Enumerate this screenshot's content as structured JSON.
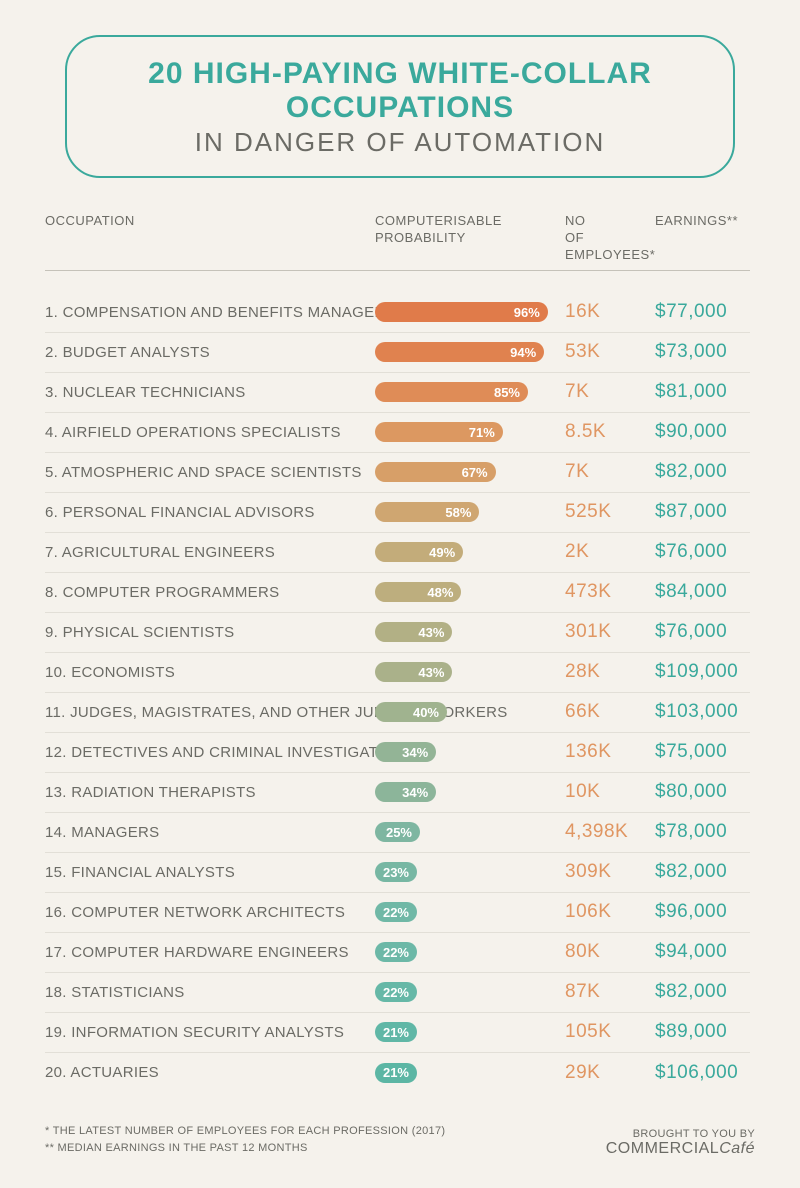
{
  "header": {
    "title_main": "20 HIGH-PAYING WHITE-COLLAR OCCUPATIONS",
    "title_sub": "IN DANGER OF AUTOMATION"
  },
  "columns": {
    "c1": "OCCUPATION",
    "c2": "COMPUTERISABLE\nPROBABILITY",
    "c3": "NO\nOF EMPLOYEES*",
    "c4": "EARNINGS**"
  },
  "chart": {
    "bar_max_width": 180,
    "bar_colors_gradient": [
      "#e07b4a",
      "#de905c",
      "#d9a26a",
      "#bfb37b",
      "#a3b58f",
      "#85b7a0",
      "#6cb8a7",
      "#5cb6a4"
    ]
  },
  "rows": [
    {
      "n": "1.",
      "occ": "COMPENSATION AND BENEFITS MANAGERS",
      "pct": 96,
      "emp": "16K",
      "earn": "$77,000",
      "color": "#e07b4a"
    },
    {
      "n": "2.",
      "occ": "BUDGET ANALYSTS",
      "pct": 94,
      "emp": "53K",
      "earn": "$73,000",
      "color": "#e0824f"
    },
    {
      "n": "3.",
      "occ": "NUCLEAR TECHNICIANS",
      "pct": 85,
      "emp": "7K",
      "earn": "$81,000",
      "color": "#df8c57"
    },
    {
      "n": "4.",
      "occ": "AIRFIELD OPERATIONS SPECIALISTS",
      "pct": 71,
      "emp": "8.5K",
      "earn": "$90,000",
      "color": "#dc9861"
    },
    {
      "n": "5.",
      "occ": "ATMOSPHERIC AND SPACE SCIENTISTS",
      "pct": 67,
      "emp": "7K",
      "earn": "$82,000",
      "color": "#d79f68"
    },
    {
      "n": "6.",
      "occ": "PERSONAL FINANCIAL ADVISORS",
      "pct": 58,
      "emp": "525K",
      "earn": "$87,000",
      "color": "#cfa671"
    },
    {
      "n": "7.",
      "occ": "AGRICULTURAL ENGINEERS",
      "pct": 49,
      "emp": "2K",
      "earn": "$76,000",
      "color": "#c3ac7a"
    },
    {
      "n": "8.",
      "occ": "COMPUTER PROGRAMMERS",
      "pct": 48,
      "emp": "473K",
      "earn": "$84,000",
      "color": "#bdae7e"
    },
    {
      "n": "9.",
      "occ": "PHYSICAL SCIENTISTS",
      "pct": 43,
      "emp": "301K",
      "earn": "$76,000",
      "color": "#b2b085"
    },
    {
      "n": "10.",
      "occ": "ECONOMISTS",
      "pct": 43,
      "emp": "28K",
      "earn": "$109,000",
      "color": "#aab18a"
    },
    {
      "n": "11.",
      "occ": "JUDGES, MAGISTRATES, AND OTHER JUDICIAL WORKERS",
      "pct": 40,
      "emp": "66K",
      "earn": "$103,000",
      "color": "#a0b38f"
    },
    {
      "n": "12.",
      "occ": "DETECTIVES AND CRIMINAL INVESTIGATORS",
      "pct": 34,
      "emp": "136K",
      "earn": "$75,000",
      "color": "#93b496"
    },
    {
      "n": "13.",
      "occ": "RADIATION THERAPISTS",
      "pct": 34,
      "emp": "10K",
      "earn": "$80,000",
      "color": "#8cb59a"
    },
    {
      "n": "14.",
      "occ": "MANAGERS",
      "pct": 25,
      "emp": "4,398K",
      "earn": "$78,000",
      "color": "#7eb6a1"
    },
    {
      "n": "15.",
      "occ": "FINANCIAL ANALYSTS",
      "pct": 23,
      "emp": "309K",
      "earn": "$82,000",
      "color": "#77b7a3"
    },
    {
      "n": "16.",
      "occ": "COMPUTER NETWORK ARCHITECTS",
      "pct": 22,
      "emp": "106K",
      "earn": "$96,000",
      "color": "#70b8a6"
    },
    {
      "n": "17.",
      "occ": "COMPUTER HARDWARE ENGINEERS",
      "pct": 22,
      "emp": "80K",
      "earn": "$94,000",
      "color": "#6cb8a7"
    },
    {
      "n": "18.",
      "occ": "STATISTICIANS",
      "pct": 22,
      "emp": "87K",
      "earn": "$82,000",
      "color": "#66b8a7"
    },
    {
      "n": "19.",
      "occ": "INFORMATION SECURITY ANALYSTS",
      "pct": 21,
      "emp": "105K",
      "earn": "$89,000",
      "color": "#60b7a6"
    },
    {
      "n": "20.",
      "occ": "ACTUARIES",
      "pct": 21,
      "emp": "29K",
      "earn": "$106,000",
      "color": "#5cb6a4"
    }
  ],
  "footer": {
    "note1": "*  THE LATEST NUMBER OF EMPLOYEES FOR EACH PROFESSION (2017)",
    "note2": "**  MEDIAN EARNINGS IN THE PAST 12 MONTHS",
    "credit_label": "BROUGHT TO YOU BY",
    "credit_brand": "COMMERCIAL",
    "credit_brand_suffix": "Café"
  }
}
